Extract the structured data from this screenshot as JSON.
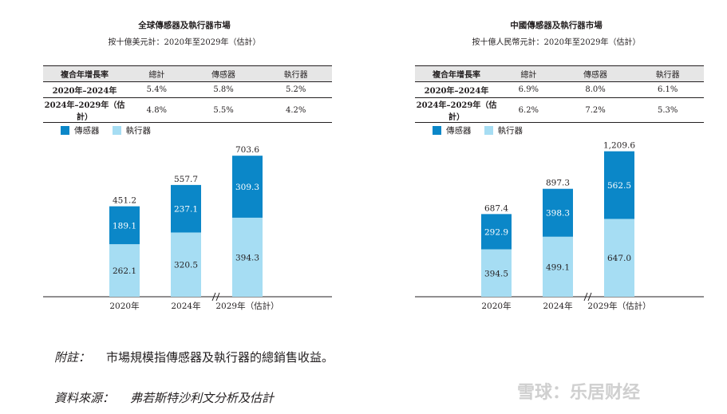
{
  "colors": {
    "sensor": "#0B87C8",
    "actuator": "#A6DDF3",
    "text": "#231f20"
  },
  "chart_data": [
    {
      "type": "bar",
      "title": "全球傳感器及執行器市場",
      "subtitle": "按十億美元計：2020年至2029年（估計）",
      "cagr_table": {
        "headers": [
          "複合年增長率",
          "總計",
          "傳感器",
          "執行器"
        ],
        "rows": [
          [
            "2020年–2024年",
            "5.4%",
            "5.8%",
            "5.2%"
          ],
          [
            "2024年–2029年（估計）",
            "4.8%",
            "5.5%",
            "4.2%"
          ]
        ]
      },
      "legend": [
        "傳感器",
        "執行器"
      ],
      "categories": [
        "2020年",
        "2024年",
        "2029年（估計）"
      ],
      "series": [
        {
          "name": "執行器",
          "values": [
            262.1,
            320.5,
            394.3
          ],
          "labels": [
            "262.1",
            "320.5",
            "394.3"
          ]
        },
        {
          "name": "傳感器",
          "values": [
            189.1,
            237.1,
            309.3
          ],
          "labels": [
            "189.1",
            "237.1",
            "309.3"
          ]
        }
      ],
      "totals": [
        451.2,
        557.7,
        703.6
      ],
      "total_labels": [
        "451.2",
        "557.7",
        "703.6"
      ],
      "ylim": [
        0,
        780
      ],
      "stacked": true
    },
    {
      "type": "bar",
      "title": "中國傳感器及執行器市場",
      "subtitle": "按十億人民幣元計：2020年至2029年（估計）",
      "cagr_table": {
        "headers": [
          "複合年增長率",
          "總計",
          "傳感器",
          "執行器"
        ],
        "rows": [
          [
            "2020年–2024年",
            "6.9%",
            "8.0%",
            "6.1%"
          ],
          [
            "2024年–2029年（估計）",
            "6.2%",
            "7.2%",
            "5.3%"
          ]
        ]
      },
      "legend": [
        "傳感器",
        "執行器"
      ],
      "categories": [
        "2020年",
        "2024年",
        "2029年（估計）"
      ],
      "series": [
        {
          "name": "執行器",
          "values": [
            394.5,
            499.1,
            647.0
          ],
          "labels": [
            "394.5",
            "499.1",
            "647.0"
          ]
        },
        {
          "name": "傳感器",
          "values": [
            292.9,
            398.3,
            562.5
          ],
          "labels": [
            "292.9",
            "398.3",
            "562.5"
          ]
        }
      ],
      "totals": [
        687.4,
        897.3,
        1209.6
      ],
      "total_labels": [
        "687.4",
        "897.3",
        "1,209.6"
      ],
      "ylim": [
        0,
        1300
      ],
      "stacked": true
    }
  ],
  "note": {
    "label": "附註：",
    "text": "市場規模指傳感器及執行器的總銷售收益。"
  },
  "source": {
    "label": "資料來源：",
    "text": "弗若斯特沙利文分析及估計"
  },
  "watermark": "雪球：乐居财经"
}
